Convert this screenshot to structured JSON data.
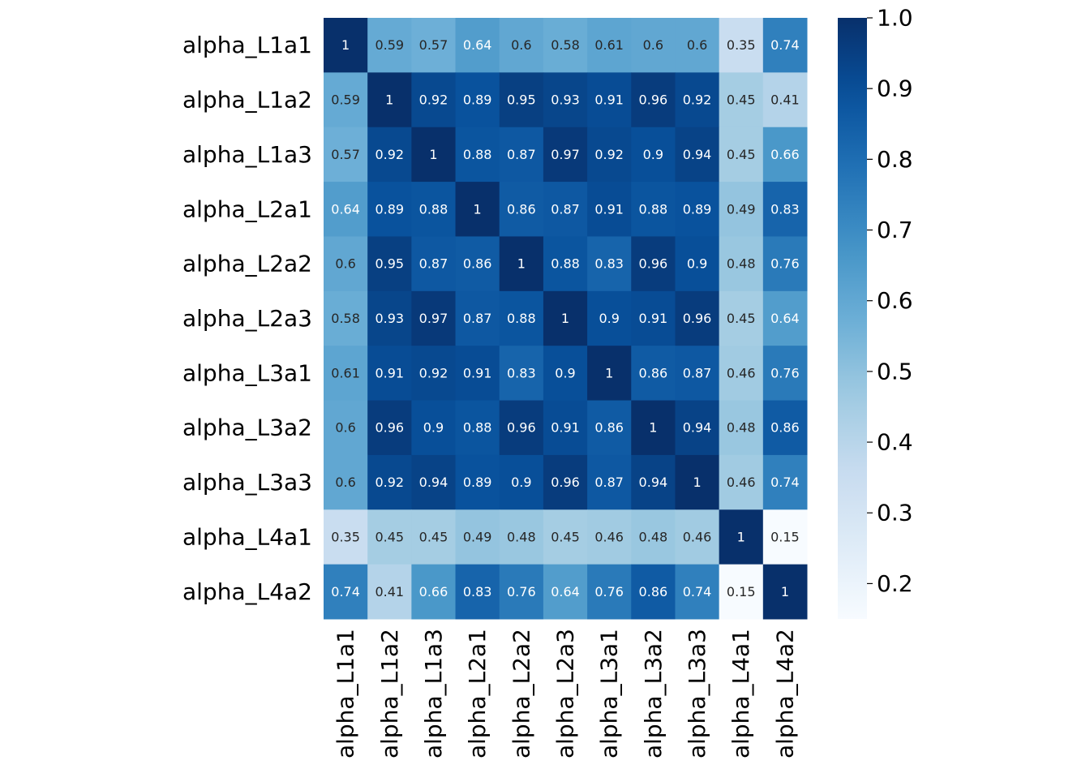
{
  "chart_data": {
    "type": "heatmap",
    "title": "",
    "xlabel": "",
    "ylabel": "",
    "row_labels": [
      "alpha_L1a1",
      "alpha_L1a2",
      "alpha_L1a3",
      "alpha_L2a1",
      "alpha_L2a2",
      "alpha_L2a3",
      "alpha_L3a1",
      "alpha_L3a2",
      "alpha_L3a3",
      "alpha_L4a1",
      "alpha_L4a2"
    ],
    "col_labels": [
      "alpha_L1a1",
      "alpha_L1a2",
      "alpha_L1a3",
      "alpha_L2a1",
      "alpha_L2a2",
      "alpha_L2a3",
      "alpha_L3a1",
      "alpha_L3a2",
      "alpha_L3a3",
      "alpha_L4a1",
      "alpha_L4a2"
    ],
    "values": [
      [
        1,
        0.59,
        0.57,
        0.64,
        0.6,
        0.58,
        0.61,
        0.6,
        0.6,
        0.35,
        0.74
      ],
      [
        0.59,
        1,
        0.92,
        0.89,
        0.95,
        0.93,
        0.91,
        0.96,
        0.92,
        0.45,
        0.41
      ],
      [
        0.57,
        0.92,
        1,
        0.88,
        0.87,
        0.97,
        0.92,
        0.9,
        0.94,
        0.45,
        0.66
      ],
      [
        0.64,
        0.89,
        0.88,
        1,
        0.86,
        0.87,
        0.91,
        0.88,
        0.89,
        0.49,
        0.83
      ],
      [
        0.6,
        0.95,
        0.87,
        0.86,
        1,
        0.88,
        0.83,
        0.96,
        0.9,
        0.48,
        0.76
      ],
      [
        0.58,
        0.93,
        0.97,
        0.87,
        0.88,
        1,
        0.9,
        0.91,
        0.96,
        0.45,
        0.64
      ],
      [
        0.61,
        0.91,
        0.92,
        0.91,
        0.83,
        0.9,
        1,
        0.86,
        0.87,
        0.46,
        0.76
      ],
      [
        0.6,
        0.96,
        0.9,
        0.88,
        0.96,
        0.91,
        0.86,
        1,
        0.94,
        0.48,
        0.86
      ],
      [
        0.6,
        0.92,
        0.94,
        0.89,
        0.9,
        0.96,
        0.87,
        0.94,
        1,
        0.46,
        0.74
      ],
      [
        0.35,
        0.45,
        0.45,
        0.49,
        0.48,
        0.45,
        0.46,
        0.48,
        0.46,
        1,
        0.15
      ],
      [
        0.74,
        0.41,
        0.66,
        0.83,
        0.76,
        0.64,
        0.76,
        0.86,
        0.74,
        0.15,
        1
      ]
    ],
    "colormap": "Blues",
    "color_range": [
      0.15,
      1.0
    ],
    "colorbar_ticks": [
      0.2,
      0.3,
      0.4,
      0.5,
      0.6,
      0.7,
      0.8,
      0.9,
      1.0
    ],
    "colorbar_tick_labels": [
      "0.2",
      "0.3",
      "0.4",
      "0.5",
      "0.6",
      "0.7",
      "0.8",
      "0.9",
      "1.0"
    ],
    "annotations": true,
    "colors": {
      "annotation_light_text": "#ffffff",
      "annotation_dark_text": "#262626",
      "tick_text": "#000000"
    }
  }
}
